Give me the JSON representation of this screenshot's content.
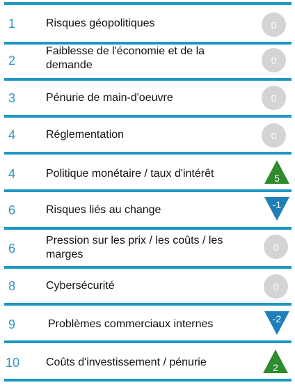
{
  "colors": {
    "accent": "#1f97c4",
    "neutral": "#d4d4d4",
    "up": "#2e8b2e",
    "down": "#1f7fb8"
  },
  "items": [
    {
      "rank": "1",
      "label": "Risques géopolitiques",
      "change": "0",
      "trend": "neutral"
    },
    {
      "rank": "2",
      "label": "Faiblesse de l'économie et de la demande",
      "change": "0",
      "trend": "neutral"
    },
    {
      "rank": "3",
      "label": "Pénurie de main-d'oeuvre",
      "change": "0",
      "trend": "neutral"
    },
    {
      "rank": "4",
      "label": "Réglementation",
      "change": "0",
      "trend": "neutral"
    },
    {
      "rank": "4",
      "label": "Politique monétaire / taux d'intérêt",
      "change": "5",
      "trend": "up"
    },
    {
      "rank": "6",
      "label": "Risques liés au change",
      "change": "-1",
      "trend": "down"
    },
    {
      "rank": "6",
      "label": "Pression sur les prix / les coûts / les marges",
      "change": "0",
      "trend": "neutral"
    },
    {
      "rank": "8",
      "label": "Cybersécurité",
      "change": "0",
      "trend": "neutral"
    },
    {
      "rank": "9",
      "label": "Problèmes commerciaux internes",
      "change": "-2",
      "trend": "down"
    },
    {
      "rank": "10",
      "label": "Coûts d'investissement / pénurie",
      "change": "2",
      "trend": "up"
    }
  ]
}
